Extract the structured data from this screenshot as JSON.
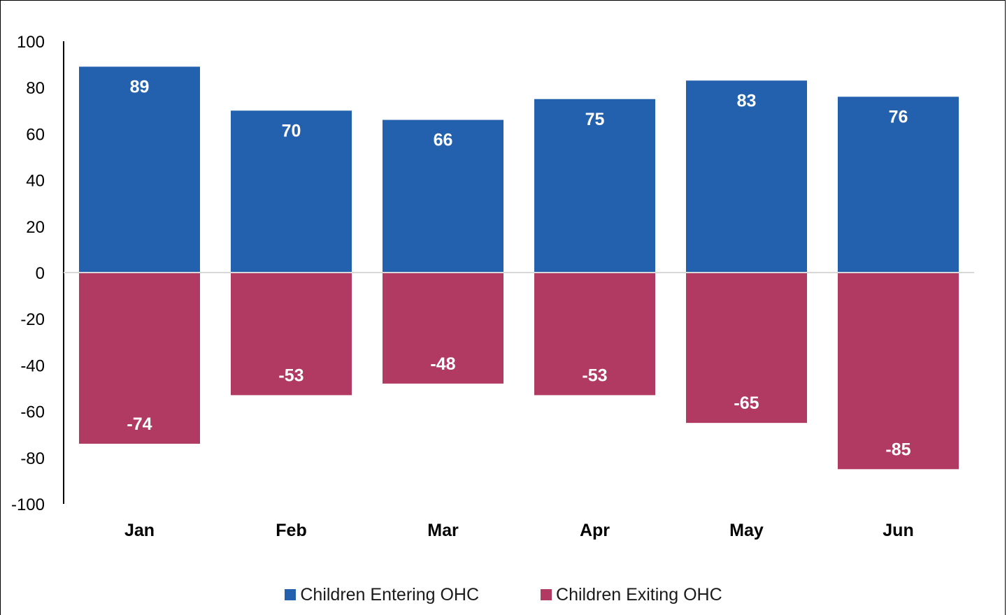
{
  "chart_data": {
    "type": "bar",
    "categories": [
      "Jan",
      "Feb",
      "Mar",
      "Apr",
      "May",
      "Jun"
    ],
    "series": [
      {
        "name": "Children Entering OHC",
        "values": [
          89,
          70,
          66,
          75,
          83,
          76
        ],
        "color": "#2361ae"
      },
      {
        "name": "Children Exiting OHC",
        "values": [
          -74,
          -53,
          -48,
          -53,
          -65,
          -85
        ],
        "color": "#b03a62"
      }
    ],
    "ylim": [
      -100,
      100
    ],
    "yticks": [
      "100",
      "80",
      "60",
      "40",
      "20",
      "0",
      "-20",
      "-40",
      "-60",
      "-80",
      "-100"
    ],
    "grid": false,
    "legend": "bottom-center",
    "zero_line_color": "#d9d9d9",
    "axis_color": "#000000"
  }
}
